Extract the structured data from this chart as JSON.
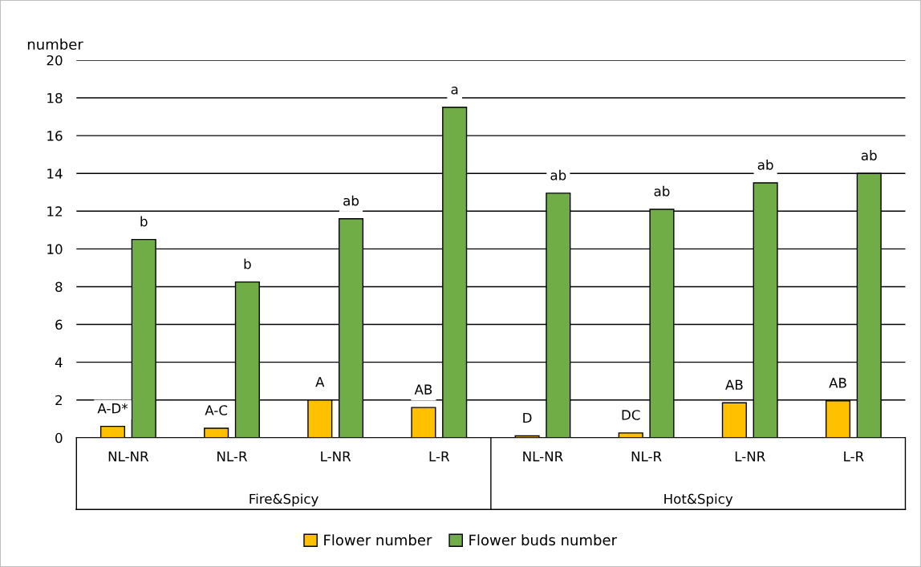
{
  "chart_data": {
    "type": "bar",
    "ylabel": "number",
    "categories": [
      "NL-NR",
      "NL-R",
      "L-NR",
      "L-R",
      "NL-NR",
      "NL-R",
      "L-NR",
      "L-R"
    ],
    "series": [
      {
        "name": "Flower number",
        "color": "#ffc000",
        "values": [
          0.6,
          0.5,
          2.0,
          1.6,
          0.1,
          0.25,
          1.85,
          1.95
        ],
        "value_labels": [
          "A-D*",
          "A-C",
          "A",
          "AB",
          "D",
          "DC",
          "AB",
          "AB"
        ]
      },
      {
        "name": "Flower buds number",
        "color": "#70ad47",
        "values": [
          10.5,
          8.25,
          11.6,
          17.5,
          12.95,
          12.1,
          13.5,
          14.0
        ],
        "value_labels": [
          "b",
          "b",
          "ab",
          "a",
          "ab",
          "ab",
          "ab",
          "ab"
        ]
      }
    ],
    "annotations": [
      "Fire&Spicy",
      "Hot&Spicy"
    ],
    "ylim": [
      0,
      20
    ],
    "yticks": [
      0,
      2,
      4,
      6,
      8,
      10,
      12,
      14,
      16,
      18,
      20
    ],
    "grid": "y",
    "legend": "bottom"
  }
}
